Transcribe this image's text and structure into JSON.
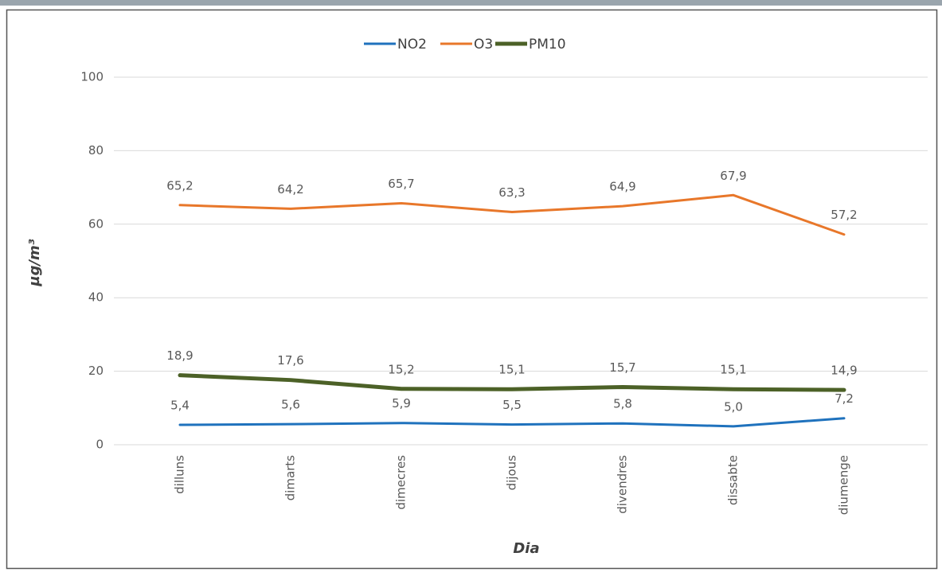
{
  "chart_data": {
    "type": "line",
    "x_label": "Dia",
    "y_label": "µg/m³",
    "categories": [
      "dilluns",
      "dimarts",
      "dimecres",
      "dijous",
      "divendres",
      "dissabte",
      "diumenge"
    ],
    "series": [
      {
        "name": "NO2",
        "color": "#1f72bd",
        "values": [
          5.4,
          5.6,
          5.9,
          5.5,
          5.8,
          5.0,
          7.2
        ],
        "value_labels": [
          "5,4",
          "5,6",
          "5,9",
          "5,5",
          "5,8",
          "5,0",
          "7,2"
        ]
      },
      {
        "name": "O3",
        "color": "#e8772a",
        "values": [
          65.2,
          64.2,
          65.7,
          63.3,
          64.9,
          67.9,
          57.2
        ],
        "value_labels": [
          "65,2",
          "64,2",
          "65,7",
          "63,3",
          "64,9",
          "67,9",
          "57,2"
        ]
      },
      {
        "name": "PM10",
        "color": "#4c6127",
        "values": [
          18.9,
          17.6,
          15.2,
          15.1,
          15.7,
          15.1,
          14.9
        ],
        "value_labels": [
          "18,9",
          "17,6",
          "15,2",
          "15,1",
          "15,7",
          "15,1",
          "14,9"
        ]
      }
    ],
    "ylim": [
      0,
      100
    ],
    "yticks": [
      0,
      20,
      40,
      60,
      80,
      100
    ],
    "grid": true,
    "legend": "top"
  }
}
